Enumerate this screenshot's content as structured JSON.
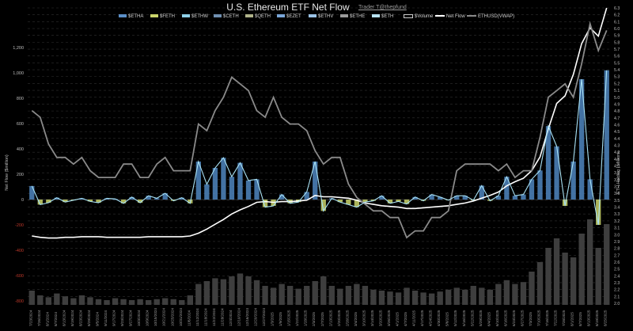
{
  "chart_data": {
    "type": "bar",
    "title": "U.S. Ethereum ETF Net Flow",
    "subtitle": "Trader T@thepfund",
    "ylabel_left": "Net Flow ($million)",
    "ylabel_right": "ETH Holding | Millions",
    "yticks_left": [
      "1,200",
      "1,000",
      "800",
      "600",
      "400",
      "200",
      "0",
      "-200",
      "-400",
      "-600",
      "-800"
    ],
    "yticks_right": [
      "6.3",
      "6.2",
      "6.1",
      "6.0",
      "5.9",
      "5.8",
      "5.7",
      "5.6",
      "5.5",
      "5.4",
      "5.3",
      "5.2",
      "5.1",
      "5.0",
      "4.9",
      "4.8",
      "4.7",
      "4.6",
      "4.5",
      "4.4",
      "4.3",
      "4.2",
      "4.1",
      "4.0",
      "3.9",
      "3.8",
      "3.7",
      "3.6",
      "3.5",
      "3.4",
      "3.3",
      "3.2",
      "3.1",
      "3.0",
      "2.9",
      "2.8",
      "2.7",
      "2.6",
      "2.5",
      "2.4",
      "2.3",
      "2.2",
      "2.1",
      "2.0"
    ],
    "ylim_left": [
      -800,
      1200
    ],
    "ylim_right": [
      2.0,
      6.3
    ],
    "legend": [
      {
        "name": "$ETHA",
        "color": "#5b8fc7",
        "kind": "bar"
      },
      {
        "name": "$FETH",
        "color": "#c9d46a",
        "kind": "bar"
      },
      {
        "name": "$ETHW",
        "color": "#8fd0e8",
        "kind": "bar"
      },
      {
        "name": "$CETH",
        "color": "#6f8fb0",
        "kind": "bar"
      },
      {
        "name": "$QETH",
        "color": "#b0b38a",
        "kind": "bar"
      },
      {
        "name": "$EZET",
        "color": "#7aa6d8",
        "kind": "bar"
      },
      {
        "name": "$ETHV",
        "color": "#9bc3e6",
        "kind": "bar"
      },
      {
        "name": "$ETHE",
        "color": "#9a9a9a",
        "kind": "bar"
      },
      {
        "name": "$ETH",
        "color": "#b8e3f2",
        "kind": "bar"
      },
      {
        "name": "$Volume",
        "color": "#cccccc",
        "kind": "box"
      },
      {
        "name": "Net Flow",
        "color": "#ffffff",
        "kind": "line"
      },
      {
        "name": "ETHUSD(VWAP)",
        "color": "#8a8a8a",
        "kind": "line"
      }
    ],
    "x": [
      "7/23/2024",
      "7/26/2024",
      "8/1/2024",
      "8/7/2024",
      "8/13/2024",
      "8/19/2024",
      "8/23/2024",
      "8/29/2024",
      "9/5/2024",
      "9/11/2024",
      "9/17/2024",
      "9/23/2024",
      "9/27/2024",
      "10/3/2024",
      "10/9/2024",
      "10/15/2024",
      "10/21/2024",
      "10/25/2024",
      "10/31/2024",
      "11/6/2024",
      "11/12/2024",
      "11/18/2024",
      "11/22/2024",
      "11/28/2024",
      "12/4/2024",
      "12/10/2024",
      "12/16/2024",
      "12/20/2024",
      "12/27/2024",
      "1/3/2025",
      "1/9/2025",
      "1/15/2025",
      "1/22/2025",
      "1/28/2025",
      "2/3/2025",
      "2/7/2025",
      "2/13/2025",
      "2/20/2025",
      "2/26/2025",
      "3/4/2025",
      "3/10/2025",
      "3/14/2025",
      "3/20/2025",
      "3/26/2025",
      "4/1/2025",
      "4/7/2025",
      "4/11/2025",
      "4/17/2025",
      "4/24/2025",
      "4/30/2025",
      "5/6/2025",
      "5/12/2025",
      "5/16/2025",
      "5/22/2025",
      "5/29/2025",
      "6/4/2025",
      "6/10/2025",
      "6/16/2025",
      "6/23/2025",
      "6/27/2025",
      "7/3/2025",
      "7/10/2025",
      "7/16/2025",
      "7/22/2025",
      "7/28/2025",
      "8/1/2025",
      "8/7/2025",
      "8/13/2025",
      "8/19/2025",
      "8/25/2025"
    ],
    "series": [
      {
        "name": "Net Flow",
        "values": [
          107,
          -40,
          -25,
          15,
          -20,
          -5,
          10,
          -15,
          -25,
          10,
          5,
          -30,
          20,
          -25,
          30,
          10,
          50,
          -10,
          15,
          -30,
          300,
          120,
          250,
          330,
          180,
          290,
          150,
          160,
          -60,
          -50,
          40,
          -30,
          -20,
          60,
          300,
          -90,
          10,
          -20,
          -40,
          -60,
          -20,
          -10,
          30,
          -30,
          -15,
          -35,
          20,
          -10,
          40,
          20,
          -5,
          30,
          30,
          -5,
          110,
          -10,
          30,
          180,
          30,
          40,
          160,
          230,
          580,
          420,
          -50,
          300,
          950,
          160,
          -200,
          1020
        ]
      },
      {
        "name": "ETHUSD(VWAP)",
        "values": [
          3.4,
          3.3,
          2.9,
          2.7,
          2.7,
          2.6,
          2.7,
          2.5,
          2.4,
          2.4,
          2.4,
          2.6,
          2.6,
          2.4,
          2.4,
          2.6,
          2.7,
          2.5,
          2.5,
          2.5,
          3.2,
          3.1,
          3.4,
          3.6,
          3.9,
          3.8,
          3.7,
          3.4,
          3.3,
          3.6,
          3.3,
          3.2,
          3.2,
          3.1,
          2.8,
          2.6,
          2.7,
          2.7,
          2.3,
          2.1,
          2.0,
          1.9,
          1.9,
          1.8,
          1.8,
          1.5,
          1.6,
          1.6,
          1.8,
          1.8,
          1.9,
          2.5,
          2.6,
          2.6,
          2.6,
          2.6,
          2.5,
          2.6,
          2.4,
          2.5,
          2.5,
          3.0,
          3.6,
          3.7,
          3.8,
          3.6,
          4.1,
          4.7,
          4.3,
          4.6
        ]
      },
      {
        "name": "ETH Holding",
        "values": [
          2.98,
          2.96,
          2.95,
          2.95,
          2.96,
          2.96,
          2.97,
          2.97,
          2.97,
          2.96,
          2.96,
          2.96,
          2.96,
          2.96,
          2.97,
          2.97,
          2.97,
          2.97,
          2.97,
          2.98,
          3.02,
          3.08,
          3.15,
          3.22,
          3.3,
          3.36,
          3.41,
          3.47,
          3.48,
          3.47,
          3.48,
          3.48,
          3.49,
          3.5,
          3.57,
          3.55,
          3.55,
          3.54,
          3.53,
          3.5,
          3.46,
          3.44,
          3.42,
          3.41,
          3.4,
          3.38,
          3.38,
          3.39,
          3.4,
          3.41,
          3.42,
          3.44,
          3.46,
          3.49,
          3.53,
          3.57,
          3.62,
          3.71,
          3.77,
          3.82,
          3.93,
          4.13,
          4.54,
          4.91,
          5.02,
          5.33,
          5.78,
          6.01,
          5.89,
          6.3
        ]
      }
    ],
    "volume_relative": [
      0.15,
      0.1,
      0.08,
      0.12,
      0.09,
      0.07,
      0.1,
      0.08,
      0.06,
      0.05,
      0.07,
      0.06,
      0.05,
      0.06,
      0.05,
      0.06,
      0.07,
      0.06,
      0.05,
      0.1,
      0.22,
      0.25,
      0.28,
      0.27,
      0.3,
      0.33,
      0.3,
      0.26,
      0.2,
      0.18,
      0.22,
      0.2,
      0.17,
      0.2,
      0.25,
      0.3,
      0.2,
      0.17,
      0.2,
      0.22,
      0.2,
      0.16,
      0.15,
      0.14,
      0.13,
      0.18,
      0.15,
      0.13,
      0.12,
      0.14,
      0.16,
      0.18,
      0.16,
      0.2,
      0.18,
      0.16,
      0.22,
      0.26,
      0.22,
      0.24,
      0.35,
      0.45,
      0.6,
      0.7,
      0.55,
      0.5,
      0.75,
      0.9,
      0.6,
      0.85
    ],
    "grid": "horizontal-dashed"
  }
}
